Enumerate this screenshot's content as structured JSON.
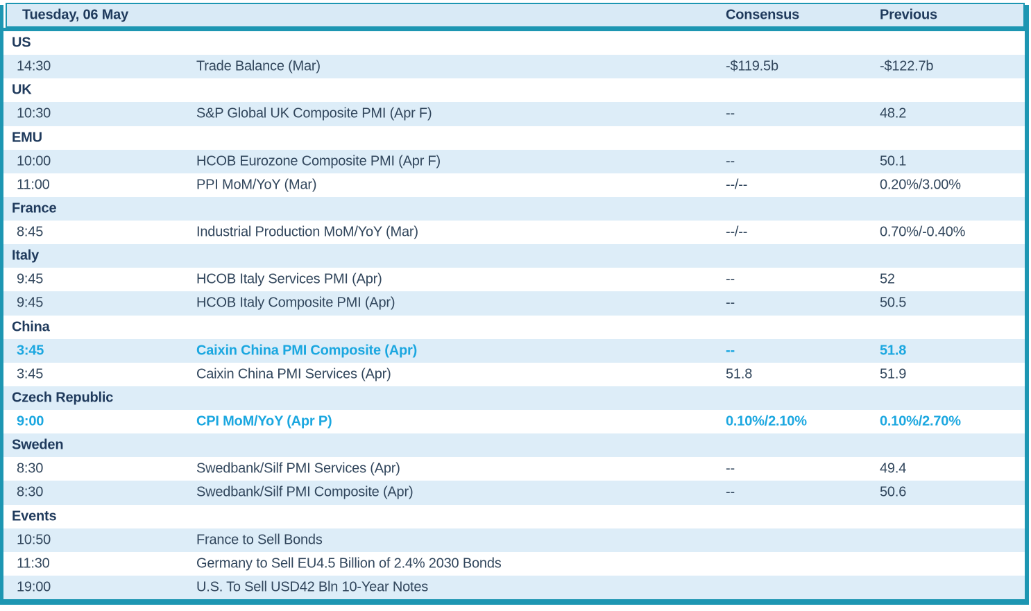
{
  "table": {
    "title": "Tuesday, 06 May",
    "columns": {
      "consensus": "Consensus",
      "previous": "Previous"
    },
    "rows": [
      {
        "type": "section",
        "label": "US"
      },
      {
        "type": "event",
        "time": "14:30",
        "name": "Trade Balance (Mar)",
        "consensus": "-$119.5b",
        "previous": "-$122.7b",
        "highlight": false
      },
      {
        "type": "section",
        "label": "UK"
      },
      {
        "type": "event",
        "time": "10:30",
        "name": "S&P Global UK Composite PMI (Apr F)",
        "consensus": "--",
        "previous": "48.2",
        "highlight": false
      },
      {
        "type": "section",
        "label": "EMU"
      },
      {
        "type": "event",
        "time": "10:00",
        "name": "HCOB Eurozone Composite PMI (Apr F)",
        "consensus": "--",
        "previous": "50.1",
        "highlight": false
      },
      {
        "type": "event",
        "time": "11:00",
        "name": "PPI MoM/YoY (Mar)",
        "consensus": "--/--",
        "previous": "0.20%/3.00%",
        "highlight": false
      },
      {
        "type": "section",
        "label": "France"
      },
      {
        "type": "event",
        "time": "8:45",
        "name": "Industrial Production MoM/YoY (Mar)",
        "consensus": "--/--",
        "previous": "0.70%/-0.40%",
        "highlight": false
      },
      {
        "type": "section",
        "label": "Italy"
      },
      {
        "type": "event",
        "time": "9:45",
        "name": "HCOB Italy Services PMI (Apr)",
        "consensus": "--",
        "previous": "52",
        "highlight": false
      },
      {
        "type": "event",
        "time": "9:45",
        "name": "HCOB Italy Composite PMI (Apr)",
        "consensus": "--",
        "previous": "50.5",
        "highlight": false
      },
      {
        "type": "section",
        "label": "China"
      },
      {
        "type": "event",
        "time": "3:45",
        "name": "Caixin China PMI Composite (Apr)",
        "consensus": "--",
        "previous": "51.8",
        "highlight": true
      },
      {
        "type": "event",
        "time": "3:45",
        "name": "Caixin China PMI Services (Apr)",
        "consensus": "51.8",
        "previous": "51.9",
        "highlight": false
      },
      {
        "type": "section",
        "label": "Czech Republic"
      },
      {
        "type": "event",
        "time": "9:00",
        "name": "CPI MoM/YoY (Apr P)",
        "consensus": "0.10%/2.10%",
        "previous": "0.10%/2.70%",
        "highlight": true
      },
      {
        "type": "section",
        "label": "Sweden"
      },
      {
        "type": "event",
        "time": "8:30",
        "name": "Swedbank/Silf PMI Services (Apr)",
        "consensus": "--",
        "previous": "49.4",
        "highlight": false
      },
      {
        "type": "event",
        "time": "8:30",
        "name": "Swedbank/Silf PMI Composite (Apr)",
        "consensus": "--",
        "previous": "50.6",
        "highlight": false
      },
      {
        "type": "section",
        "label": "Events"
      },
      {
        "type": "event",
        "time": "10:50",
        "name": "France to Sell Bonds",
        "consensus": "",
        "previous": "",
        "highlight": false
      },
      {
        "type": "event",
        "time": "11:30",
        "name": "Germany to Sell EU4.5 Billion of 2.4% 2030 Bonds",
        "consensus": "",
        "previous": "",
        "highlight": false
      },
      {
        "type": "event",
        "time": "19:00",
        "name": "U.S. To Sell USD42 Bln 10-Year Notes",
        "consensus": "",
        "previous": "",
        "highlight": false
      }
    ]
  },
  "colors": {
    "teal_border": "#1d96b2",
    "header_bg": "#d9eaf6",
    "stripe_bg": "#ddedf8",
    "navy_text": "#1f3a5c",
    "body_text": "#31465c",
    "highlight_text": "#1ba7e0"
  }
}
